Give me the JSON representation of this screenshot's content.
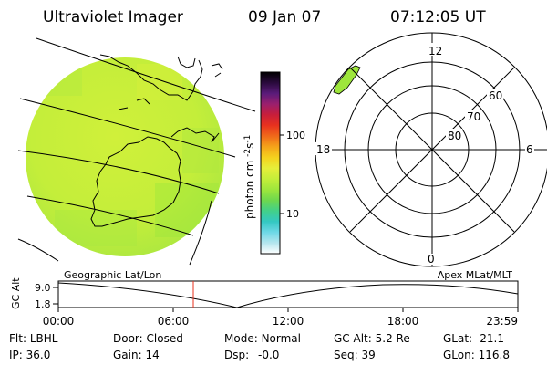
{
  "header": {
    "instrument": "Ultraviolet Imager",
    "date": "09 Jan 07",
    "time": "07:12:05 UT"
  },
  "colorbar": {
    "unit_label": "photon cm",
    "unit_sup_a": "-2",
    "unit_mid": "s",
    "unit_sup_b": "-1",
    "tick_100": "100",
    "tick_10": "10",
    "stops": [
      "#000000",
      "#2a0a3c",
      "#5a1b7a",
      "#9a1f6e",
      "#c81e3a",
      "#e8321e",
      "#f06a1a",
      "#f5a41a",
      "#f5d21e",
      "#e6ee3a",
      "#c4ee3a",
      "#9ee63c",
      "#6ed84e",
      "#42d08a",
      "#34c8c2",
      "#6ed8e6",
      "#b4e6ee",
      "#ffffff"
    ]
  },
  "polar": {
    "mlt_top": "12",
    "mlt_bottom": "0",
    "mlt_left": "18",
    "mlt_right": "6",
    "lat_60": "60",
    "lat_70": "70",
    "lat_80": "80",
    "blob_color": "#9ee63c"
  },
  "earth": {
    "fill_color": "#c4ee3a",
    "coast_color": "#000000"
  },
  "timeline": {
    "label_left": "Geographic Lat/Lon",
    "label_right": "Apex MLat/MLT",
    "axis_title": "GC Alt",
    "y_max": "9.0",
    "y_min": "1.8",
    "ticks": [
      "00:00",
      "06:00",
      "12:00",
      "18:00",
      "23:59"
    ],
    "current_time_color": "#e8321e"
  },
  "status": {
    "flt_label": "Flt:",
    "flt_value": "LBHL",
    "ip_label": "IP:",
    "ip_value": "36.0",
    "door_label": "Door:",
    "door_value": "Closed",
    "gain_label": "Gain:",
    "gain_value": "14",
    "mode_label": "Mode:",
    "mode_value": "Normal",
    "dsp_label": "Dsp:",
    "dsp_value": "-0.0",
    "gcalt_label": "GC Alt:",
    "gcalt_value": "5.2 Re",
    "seq_label": "Seq:",
    "seq_value": "39",
    "glat_label": "GLat:",
    "glat_value": "-21.1",
    "glon_label": "GLon:",
    "glon_value": "116.8"
  }
}
